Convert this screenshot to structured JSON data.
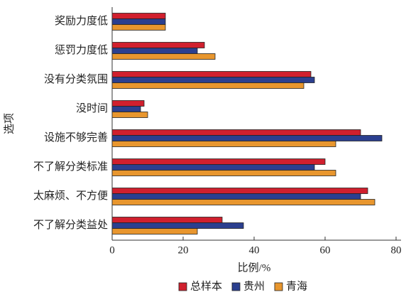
{
  "chart_data": {
    "type": "barh",
    "categories": [
      "奖励力度低",
      "惩罚力度低",
      "没有分类氛围",
      "没时间",
      "设施不够完善",
      "不了解分类标准",
      "太麻烦、不方便",
      "不了解分类益处"
    ],
    "series": [
      {
        "name": "总样本",
        "color": "#d0202e",
        "values": [
          15,
          26,
          56,
          9,
          70,
          60,
          72,
          31
        ]
      },
      {
        "name": "贵州",
        "color": "#2b3f8f",
        "values": [
          15,
          24,
          57,
          8,
          76,
          57,
          70,
          37
        ]
      },
      {
        "name": "青海",
        "color": "#e8962e",
        "values": [
          15,
          29,
          54,
          10,
          63,
          63,
          74,
          24
        ]
      }
    ],
    "xlabel": "比例/%",
    "ylabel": "选项",
    "xlim": [
      0,
      80
    ],
    "xticks": [
      0,
      20,
      40,
      60,
      80
    ],
    "legend": "bottom"
  }
}
